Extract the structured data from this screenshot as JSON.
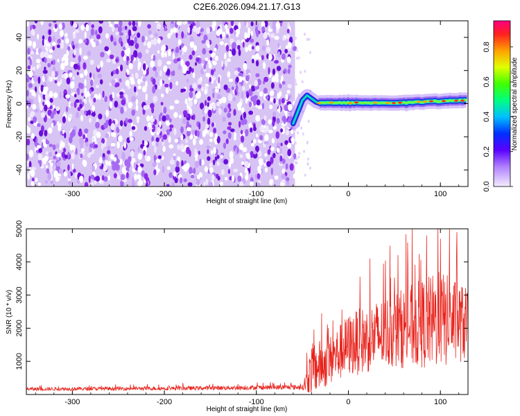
{
  "title": "C2E6.2026.094.21.17.G13",
  "colors": {
    "snr_line": "#e8231c",
    "scatter_bg": "#d8c4f4",
    "scatter_dark": "#7a18e0",
    "frame": "#000000"
  },
  "chart_data": [
    {
      "id": "spectrogram",
      "type": "heatmap",
      "xlabel": "Height of straight line (km)",
      "ylabel": "Frequency (Hz)",
      "xlim": [
        -350,
        130
      ],
      "ylim": [
        -50,
        50
      ],
      "xticks": [
        -300,
        -200,
        -100,
        0,
        100
      ],
      "xtick_labels": [
        "-300",
        "-200",
        "-100",
        "0",
        "100"
      ],
      "yticks": [
        -40,
        -20,
        0,
        20,
        40
      ],
      "ytick_labels": [
        "-40",
        "-20",
        "0",
        "20",
        "40"
      ],
      "noise_region_x": [
        -350,
        -58
      ],
      "signal_trace": {
        "x_start": -60,
        "x_end": 130,
        "center_frequency": 0.5,
        "onset_points": [
          {
            "x": -60,
            "y": -12
          },
          {
            "x": -55,
            "y": -5
          },
          {
            "x": -50,
            "y": 2
          },
          {
            "x": -45,
            "y": 5
          },
          {
            "x": -40,
            "y": 3
          },
          {
            "x": -35,
            "y": 1
          },
          {
            "x": -30,
            "y": 0
          }
        ]
      },
      "colorbar": {
        "label": "Normalized spectral amplitude",
        "range": [
          0.0,
          0.95
        ],
        "ticks": [
          0.0,
          0.2,
          0.4,
          0.6,
          0.8
        ],
        "tick_labels": [
          "0.0",
          "0.2",
          "0.4",
          "0.6",
          "0.8"
        ]
      }
    },
    {
      "id": "snr",
      "type": "line",
      "xlabel": "Height of straight line (km)",
      "ylabel": "SNR (10 * v/v)",
      "xlim": [
        -350,
        130
      ],
      "ylim": [
        0,
        5000
      ],
      "xticks": [
        -300,
        -200,
        -100,
        0,
        100
      ],
      "xtick_labels": [
        "-300",
        "-200",
        "-100",
        "0",
        "100"
      ],
      "yticks": [
        1000,
        2000,
        3000,
        4000,
        5000
      ],
      "ytick_labels": [
        "1000",
        "2000",
        "3000",
        "4000",
        "5000"
      ],
      "envelope": [
        {
          "x": -350,
          "base": 150,
          "amp": 100
        },
        {
          "x": -180,
          "base": 170,
          "amp": 120
        },
        {
          "x": -50,
          "base": 200,
          "amp": 150
        },
        {
          "x": -45,
          "base": 300,
          "amp": 800
        },
        {
          "x": -40,
          "base": 500,
          "amp": 1600
        },
        {
          "x": -20,
          "base": 800,
          "amp": 1500
        },
        {
          "x": 0,
          "base": 1200,
          "amp": 1900
        },
        {
          "x": 50,
          "base": 1600,
          "amp": 2300
        },
        {
          "x": 100,
          "base": 1800,
          "amp": 3000
        },
        {
          "x": 130,
          "base": 1800,
          "amp": 2200
        }
      ],
      "peaks": [
        {
          "x": -180,
          "y": 350
        },
        {
          "x": 85,
          "y": 4800
        },
        {
          "x": 100,
          "y": 4700
        },
        {
          "x": 110,
          "y": 5000
        },
        {
          "x": 118,
          "y": 4900
        }
      ]
    }
  ]
}
